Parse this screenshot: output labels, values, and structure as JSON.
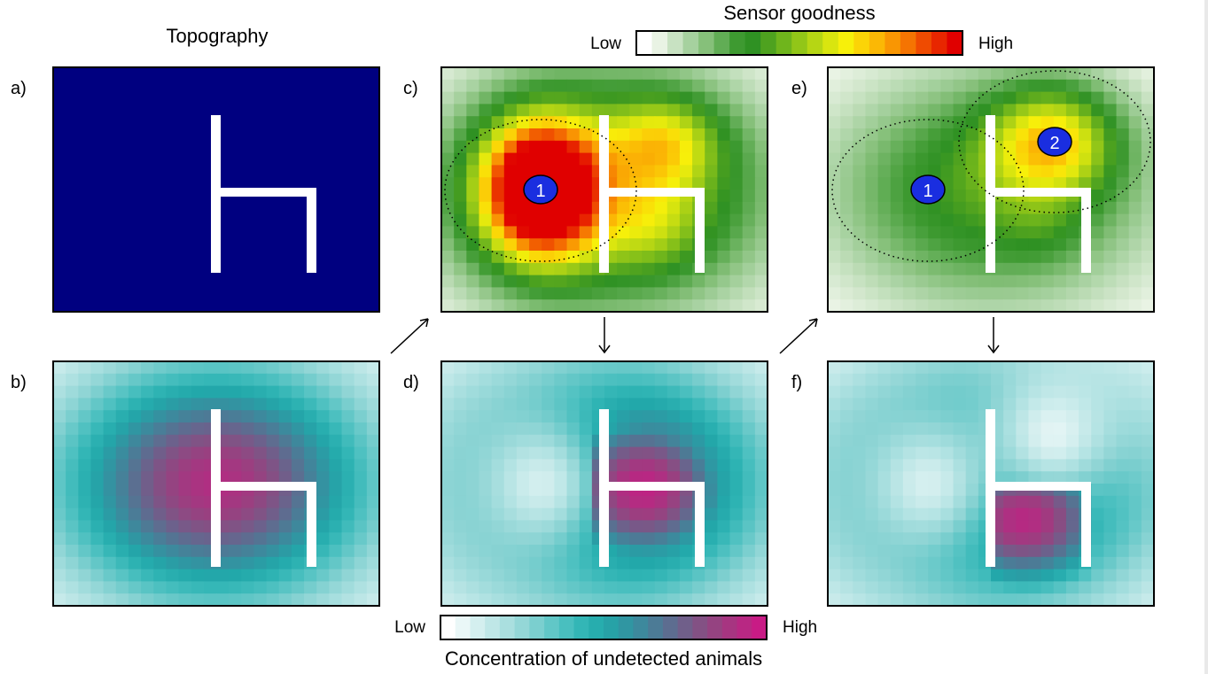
{
  "header": {
    "title": "Topography",
    "sensor_legend_title": "Sensor goodness"
  },
  "sensor_legend": {
    "low": "Low",
    "high": "High",
    "colors": [
      "#ffffff",
      "#e9f3e4",
      "#c8e2c2",
      "#a6d19f",
      "#86c07a",
      "#61ad55",
      "#3e9a31",
      "#2f9123",
      "#4ea21f",
      "#6fb51c",
      "#92c618",
      "#b6d614",
      "#d9e50f",
      "#f7f00a",
      "#fbd407",
      "#fbb805",
      "#f99603",
      "#f57402",
      "#ef4b01",
      "#e82600",
      "#e00000"
    ]
  },
  "concentration_legend": {
    "low": "Low",
    "high": "High",
    "title": "Concentration of undetected animals",
    "colors": [
      "#ffffff",
      "#e3f4f4",
      "#c7eaea",
      "#abe0e0",
      "#8fd5d5",
      "#6ccaca",
      "#4cc0c0",
      "#2fb4b4",
      "#22a8aa",
      "#2e98a3",
      "#3f879c",
      "#537593",
      "#6b628c",
      "#845084",
      "#9c3e80",
      "#b32c82",
      "#c81b85"
    ]
  },
  "panels": [
    {
      "label": "a)",
      "type": "topography",
      "background": "#000080"
    },
    {
      "label": "b)",
      "type": "concentration"
    },
    {
      "label": "c)",
      "type": "goodness",
      "sensors": [
        "1"
      ]
    },
    {
      "label": "d)",
      "type": "concentration"
    },
    {
      "label": "e)",
      "type": "goodness",
      "sensors": [
        "1",
        "2"
      ]
    },
    {
      "label": "f)",
      "type": "concentration"
    }
  ],
  "sensor_color": "#1a2ee0",
  "arrows": [
    "↗",
    "↓",
    "↗",
    "↓"
  ]
}
